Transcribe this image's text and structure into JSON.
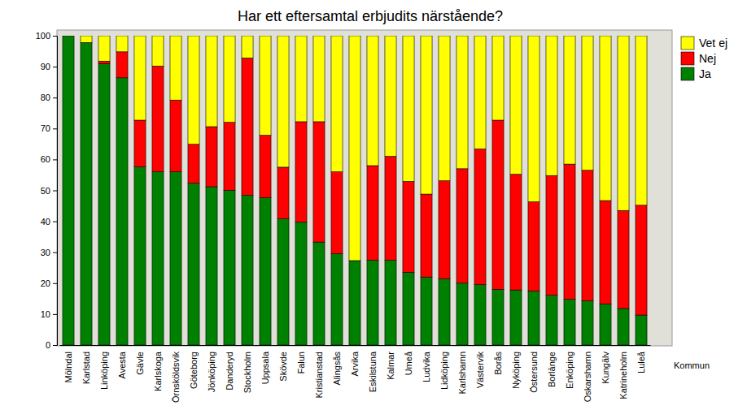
{
  "chart_data": {
    "type": "bar",
    "title": "Har ett eftersamtal erbjudits närstående?",
    "x_label": "Kommun",
    "categories": [
      "Mölndal",
      "Karlstad",
      "Linköping",
      "Avesta",
      "Gävle",
      "Karlskoga",
      "Örnsköldsvik",
      "Göteborg",
      "Jönköping",
      "Danderyd",
      "Stockholm",
      "Uppsala",
      "Skövde",
      "Falun",
      "Kristianstad",
      "Alingsås",
      "Arvika",
      "Eskilstuna",
      "Kalmar",
      "Umeå",
      "Ludvika",
      "Lidköping",
      "Karlshamn",
      "Västervik",
      "Borås",
      "Nyköping",
      "Östersund",
      "Borlänge",
      "Enköping",
      "Oskarshamn",
      "Kungälv",
      "Katrineholm",
      "Luleå"
    ],
    "series": [
      {
        "name": "Ja",
        "color": "#008000",
        "values": [
          100,
          97.8,
          90.9,
          86.4,
          57.6,
          56,
          56,
          52.3,
          51.2,
          50,
          48.4,
          47.6,
          40.8,
          39.7,
          33.3,
          29.5,
          27.3,
          27.4,
          27.4,
          23.5,
          22,
          21.4,
          20,
          19.5,
          18,
          17.8,
          17.5,
          16.1,
          14.8,
          14.3,
          13.3,
          11.8,
          9.7
        ]
      },
      {
        "name": "Nej",
        "color": "#ff0000",
        "values": [
          0,
          0,
          0.9,
          8.4,
          15.1,
          34.2,
          23.2,
          12.6,
          19.4,
          22,
          44.4,
          20.2,
          16.7,
          32.5,
          38.9,
          26.5,
          0,
          30.6,
          33.6,
          29.4,
          26.8,
          31.7,
          37,
          43.9,
          54.7,
          37.4,
          28.8,
          38.7,
          43.7,
          42.2,
          33.4,
          31.7,
          35.5
        ]
      },
      {
        "name": "Vet ej",
        "color": "#ffff00",
        "values": [
          0,
          2.2,
          8.2,
          5.2,
          27.3,
          9.8,
          20.8,
          35.1,
          29.4,
          28,
          7.2,
          32.2,
          42.5,
          27.8,
          27.8,
          44,
          72.7,
          42,
          39,
          47.1,
          51.2,
          46.9,
          43,
          36.6,
          27.3,
          44.8,
          53.7,
          45.2,
          41.5,
          43.5,
          53.3,
          56.5,
          54.8
        ]
      }
    ],
    "ylim": [
      0,
      100
    ],
    "yticks": [
      0,
      10,
      20,
      30,
      40,
      50,
      60,
      70,
      80,
      90,
      100
    ],
    "stacked": true,
    "grid": false,
    "legend": "right"
  }
}
